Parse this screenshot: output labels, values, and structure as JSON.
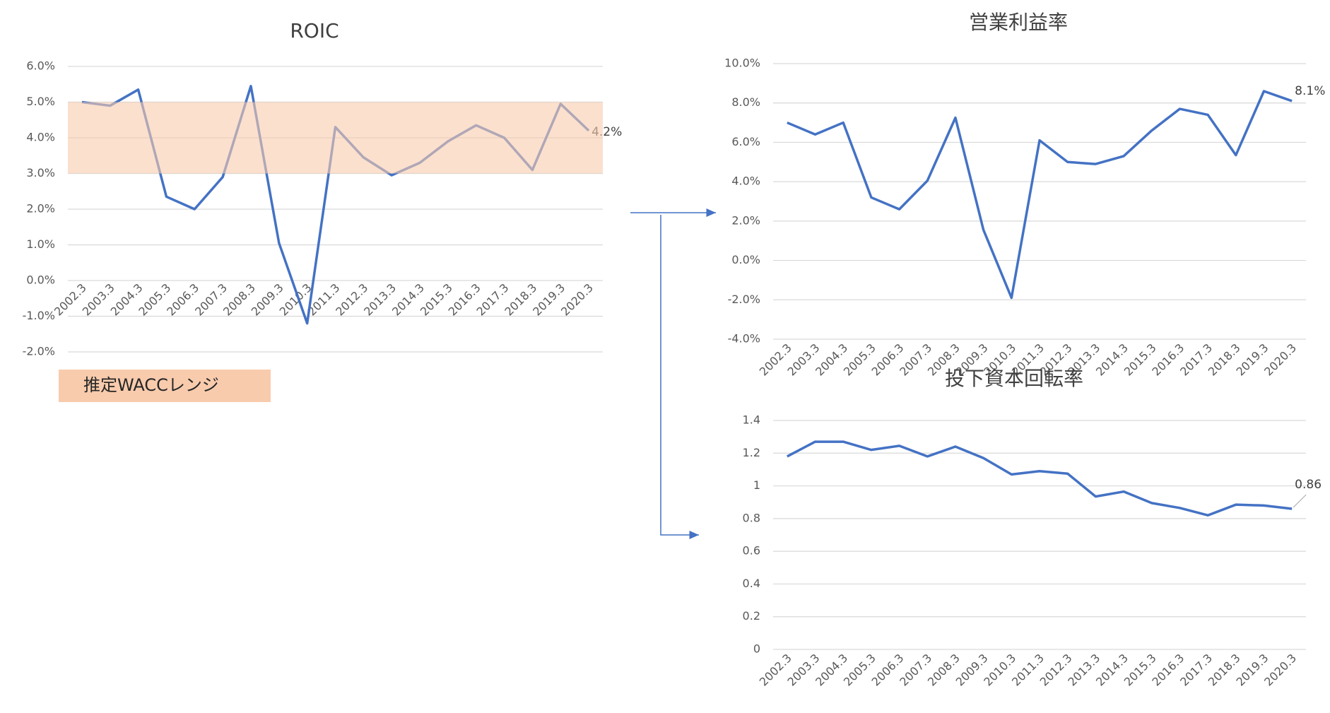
{
  "chart_data": [
    {
      "type": "line",
      "title": "ROIC",
      "categories": [
        "2002.3",
        "2003.3",
        "2004.3",
        "2005.3",
        "2006.3",
        "2007.3",
        "2008.3",
        "2009.3",
        "2010.3",
        "2011.3",
        "2012.3",
        "2013.3",
        "2014.3",
        "2015.3",
        "2016.3",
        "2017.3",
        "2018.3",
        "2019.3",
        "2020.3"
      ],
      "series": [
        {
          "color": "#4472c4",
          "values": [
            5.0,
            4.9,
            5.35,
            2.35,
            2.0,
            2.9,
            5.45,
            1.05,
            -1.2,
            4.3,
            3.45,
            2.95,
            3.3,
            3.9,
            4.35,
            4.0,
            3.1,
            4.95,
            4.2
          ],
          "value_labels": [
            null,
            null,
            null,
            null,
            null,
            null,
            null,
            null,
            null,
            null,
            null,
            null,
            null,
            null,
            null,
            null,
            null,
            null,
            "4.2%"
          ]
        }
      ],
      "band": {
        "range": [
          3,
          5
        ],
        "label": "推定WACCレンジ",
        "color": "#f8cbad"
      },
      "ylim": [
        -2,
        6
      ],
      "yticks": [
        {
          "value": -2,
          "label": "-2.0%"
        },
        {
          "value": -1,
          "label": "-1.0%"
        },
        {
          "value": 0,
          "label": "0.0%"
        },
        {
          "value": 1,
          "label": "1.0%"
        },
        {
          "value": 2,
          "label": "2.0%"
        },
        {
          "value": 3,
          "label": "3.0%"
        },
        {
          "value": 4,
          "label": "4.0%"
        },
        {
          "value": 5,
          "label": "5.0%"
        },
        {
          "value": 6,
          "label": "6.0%"
        }
      ],
      "grid": true
    },
    {
      "type": "line",
      "title": "営業利益率",
      "categories": [
        "2002.3",
        "2003.3",
        "2004.3",
        "2005.3",
        "2006.3",
        "2007.3",
        "2008.3",
        "2009.3",
        "2010.3",
        "2011.3",
        "2012.3",
        "2013.3",
        "2014.3",
        "2015.3",
        "2016.3",
        "2017.3",
        "2018.3",
        "2019.3",
        "2020.3"
      ],
      "series": [
        {
          "color": "#4472c4",
          "values": [
            7.0,
            6.4,
            7.0,
            3.2,
            2.6,
            4.05,
            7.25,
            1.55,
            -1.9,
            6.1,
            5.0,
            4.9,
            5.3,
            6.6,
            7.7,
            7.4,
            5.35,
            8.6,
            8.1
          ],
          "value_labels": [
            null,
            null,
            null,
            null,
            null,
            null,
            null,
            null,
            null,
            null,
            null,
            null,
            null,
            null,
            null,
            null,
            null,
            null,
            "8.1%"
          ]
        }
      ],
      "ylim": [
        -4,
        10
      ],
      "yticks": [
        {
          "value": -4,
          "label": "-4.0%"
        },
        {
          "value": -2,
          "label": "-2.0%"
        },
        {
          "value": 0,
          "label": "0.0%"
        },
        {
          "value": 2,
          "label": "2.0%"
        },
        {
          "value": 4,
          "label": "4.0%"
        },
        {
          "value": 6,
          "label": "6.0%"
        },
        {
          "value": 8,
          "label": "8.0%"
        },
        {
          "value": 10,
          "label": "10.0%"
        }
      ],
      "grid": true
    },
    {
      "type": "line",
      "title": "投下資本回転率",
      "categories": [
        "2002.3",
        "2003.3",
        "2004.3",
        "2005.3",
        "2006.3",
        "2007.3",
        "2008.3",
        "2009.3",
        "2010.3",
        "2011.3",
        "2012.3",
        "2013.3",
        "2014.3",
        "2015.3",
        "2016.3",
        "2017.3",
        "2018.3",
        "2019.3",
        "2020.3"
      ],
      "series": [
        {
          "color": "#4472c4",
          "values": [
            1.18,
            1.27,
            1.27,
            1.22,
            1.245,
            1.18,
            1.24,
            1.17,
            1.07,
            1.09,
            1.075,
            0.935,
            0.965,
            0.895,
            0.865,
            0.82,
            0.885,
            0.88,
            0.86
          ],
          "value_labels": [
            null,
            null,
            null,
            null,
            null,
            null,
            null,
            null,
            null,
            null,
            null,
            null,
            null,
            null,
            null,
            null,
            null,
            null,
            "0.86"
          ]
        }
      ],
      "ylim": [
        0,
        1.4
      ],
      "yticks": [
        0,
        0.2,
        0.4,
        0.6,
        0.8,
        1,
        1.2,
        1.4
      ],
      "grid": true
    }
  ]
}
